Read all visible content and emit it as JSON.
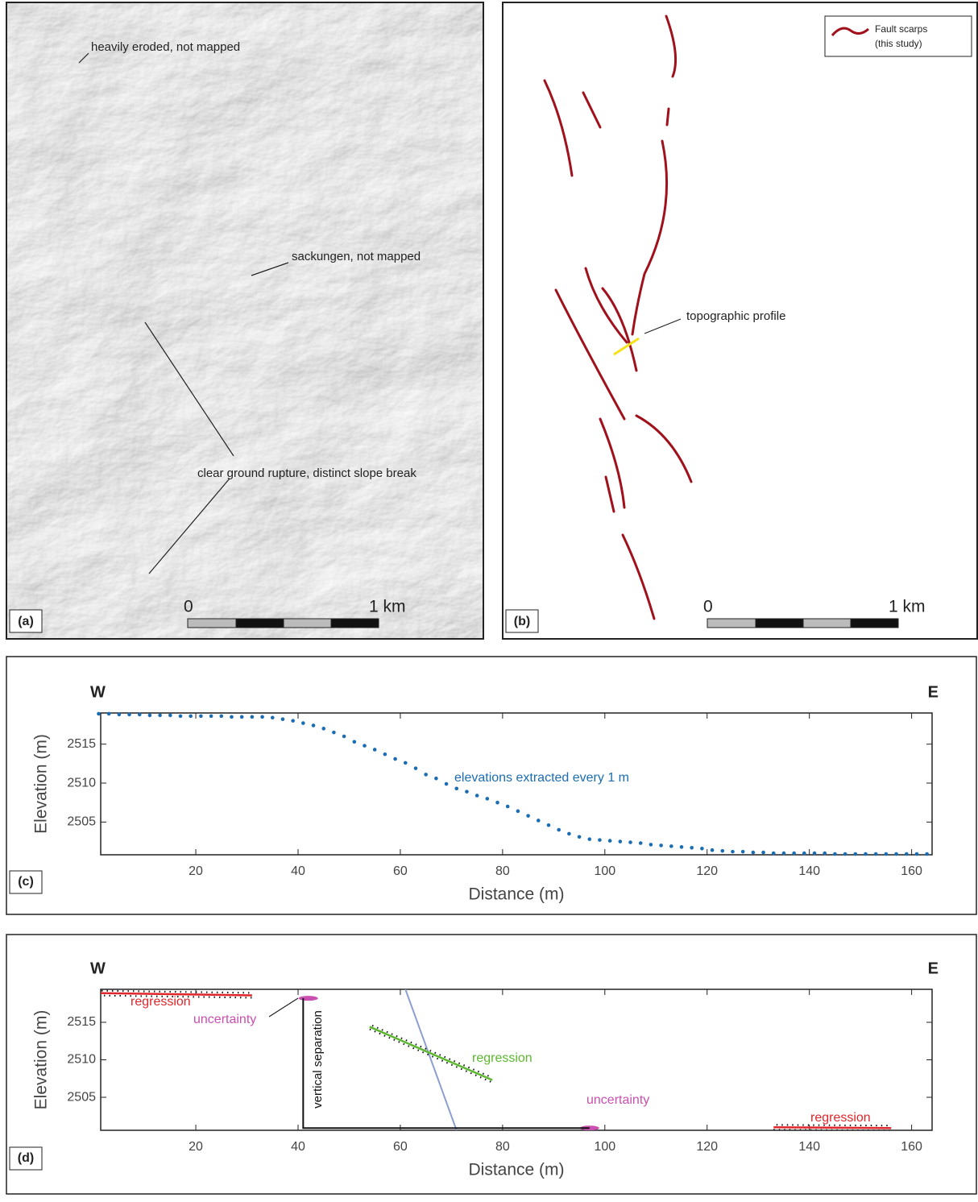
{
  "maps": {
    "a": {
      "label": "(a)",
      "annotations": [
        "heavily eroded, not mapped",
        "sackungen, not mapped",
        "clear ground rupture, distinct slope break"
      ],
      "scale": [
        "0",
        "1 km"
      ]
    },
    "b": {
      "label": "(b)",
      "legend": [
        "Fault scarps",
        "(this study)"
      ],
      "annotations": [
        "topographic profile"
      ],
      "scale": [
        "0",
        "1 km"
      ]
    }
  },
  "chart_data": [
    {
      "type": "scatter",
      "label": "(c)",
      "west": "W",
      "east": "E",
      "xlabel": "Distance (m)",
      "ylabel": "Elevation (m)",
      "annotation": "elevations extracted every 1 m",
      "xlim": [
        1.4,
        164
      ],
      "ylim": [
        2500.8,
        2519
      ],
      "xticks": [
        20,
        40,
        60,
        80,
        100,
        120,
        140,
        160
      ],
      "yticks": [
        2505,
        2510,
        2515
      ],
      "series": [
        {
          "color": "#1b6db3",
          "x": [
            1,
            3,
            5,
            7,
            9,
            11,
            13,
            15,
            17,
            19,
            21,
            23,
            25,
            27,
            29,
            31,
            33,
            35,
            37,
            39,
            41,
            43,
            45,
            47,
            49,
            51,
            53,
            55,
            57,
            59,
            61,
            63,
            65,
            67,
            69,
            71,
            73,
            75,
            77,
            79,
            81,
            83,
            85,
            87,
            89,
            91,
            93,
            95,
            97,
            99,
            101,
            103,
            105,
            107,
            109,
            111,
            113,
            115,
            117,
            119,
            121,
            123,
            125,
            127,
            129,
            131,
            133,
            135,
            137,
            139,
            141,
            143,
            145,
            147,
            149,
            151,
            153,
            155,
            157,
            159,
            161,
            163
          ],
          "values": [
            2518.9,
            2518.9,
            2518.8,
            2518.8,
            2518.8,
            2518.7,
            2518.7,
            2518.7,
            2518.6,
            2518.6,
            2518.6,
            2518.6,
            2518.6,
            2518.5,
            2518.5,
            2518.5,
            2518.5,
            2518.4,
            2518.2,
            2518.0,
            2517.7,
            2517.4,
            2517.0,
            2516.5,
            2516.0,
            2515.3,
            2514.8,
            2514.3,
            2513.7,
            2513.1,
            2512.6,
            2511.9,
            2511.1,
            2510.6,
            2509.9,
            2509.3,
            2508.9,
            2508.4,
            2508.0,
            2507.5,
            2507.0,
            2506.4,
            2505.8,
            2505.2,
            2504.6,
            2504.0,
            2503.5,
            2503.1,
            2502.8,
            2502.7,
            2502.6,
            2502.5,
            2502.4,
            2502.3,
            2502.1,
            2502.0,
            2501.9,
            2501.8,
            2501.7,
            2501.6,
            2501.4,
            2501.3,
            2501.2,
            2501.2,
            2501.1,
            2501.1,
            2501.0,
            2501.0,
            2501.0,
            2501.0,
            2501.0,
            2501.0,
            2500.9,
            2500.9,
            2500.9,
            2500.9,
            2500.9,
            2500.9,
            2500.9,
            2500.9,
            2500.9,
            2500.9
          ]
        }
      ]
    },
    {
      "type": "line",
      "label": "(d)",
      "west": "W",
      "east": "E",
      "xlabel": "Distance (m)",
      "ylabel": "Elevation (m)",
      "xlim": [
        1.4,
        164
      ],
      "ylim": [
        2500.6,
        2519.4
      ],
      "xticks": [
        20,
        40,
        60,
        80,
        100,
        120,
        140,
        160
      ],
      "yticks": [
        2505,
        2510,
        2515
      ],
      "series": [
        {
          "name": "regression",
          "color": "#e0262b",
          "markers": "dots",
          "x": [
            1,
            31
          ],
          "values": [
            2518.9,
            2518.6
          ]
        },
        {
          "color": "#8c9fd0",
          "x": [
            61,
            71
          ],
          "values": [
            2519.4,
            2500.6
          ]
        },
        {
          "name": "regression",
          "color": "#5cb82f",
          "markers": "dots",
          "x": [
            54,
            78
          ],
          "values": [
            2514.4,
            2507.3
          ]
        },
        {
          "name": "regression",
          "color": "#e0262b",
          "markers": "dots",
          "x": [
            133,
            156
          ],
          "values": [
            2501.0,
            2500.9
          ]
        },
        {
          "name": "uncertainty",
          "color": "#c94fb0",
          "marker": "ellipse",
          "x": [
            42
          ],
          "values": [
            2518.2
          ]
        },
        {
          "name": "uncertainty",
          "color": "#c94fb0",
          "marker": "ellipse",
          "x": [
            97
          ],
          "values": [
            2500.9
          ]
        },
        {
          "name": "vertical separation",
          "color": "#111111",
          "x": [
            41,
            41,
            97
          ],
          "values": [
            2518.2,
            2500.9,
            2500.9
          ]
        }
      ]
    }
  ]
}
